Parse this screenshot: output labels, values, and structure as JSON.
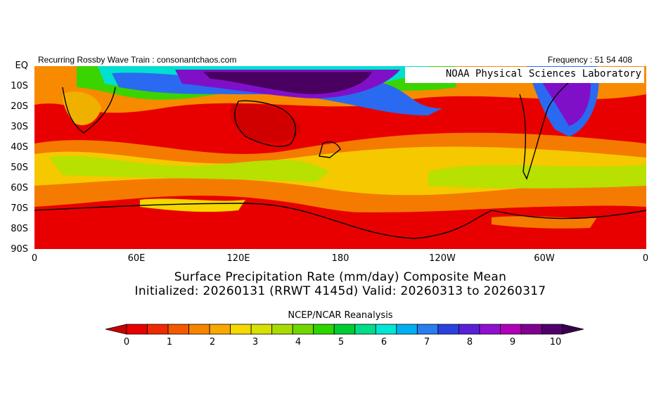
{
  "header": {
    "left": "Recurring Rossby Wave Train : consonantchaos.com",
    "right": "Frequency : 51 54 408"
  },
  "lab_label": "NOAA  Physical  Sciences  Laboratory",
  "axes": {
    "y_labels": [
      "EQ",
      "10S",
      "20S",
      "30S",
      "40S",
      "50S",
      "60S",
      "70S",
      "80S",
      "90S"
    ],
    "x_labels": [
      "0",
      "60E",
      "120E",
      "180",
      "120W",
      "60W",
      "0"
    ]
  },
  "title_line1": "Surface Precipitation Rate (mm/day) Composite Mean",
  "title_line2": "Initialized: 20260131 (RRWT 4145d) Valid: 20260313 to 20260317",
  "source": "NCEP/NCAR Reanalysis",
  "colorbar": {
    "labels": [
      "0",
      "1",
      "2",
      "3",
      "4",
      "5",
      "6",
      "7",
      "8",
      "9",
      "10"
    ],
    "colors": [
      "#e80000",
      "#f02a00",
      "#f35a00",
      "#f78400",
      "#f9a800",
      "#f5d800",
      "#d8e000",
      "#a8dc00",
      "#70d800",
      "#2ed400",
      "#00cc33",
      "#00dd88",
      "#00e6d6",
      "#00b0f0",
      "#2a7cf0",
      "#2c40e0",
      "#5a20d8",
      "#9010d0",
      "#b000b8",
      "#800090",
      "#50006c"
    ],
    "under_color": "#c80000",
    "over_color": "#3a0050"
  },
  "map_colors": {
    "background": "#e80000",
    "low": "#f04000",
    "orange": "#f88a00",
    "yellow": "#f5d800",
    "lime": "#b0e000",
    "green": "#3ad400",
    "cyan": "#00e0d0",
    "blue": "#2a6af0",
    "indigo": "#3a30d8",
    "purple": "#8010c8",
    "dark": "#4a0060"
  }
}
